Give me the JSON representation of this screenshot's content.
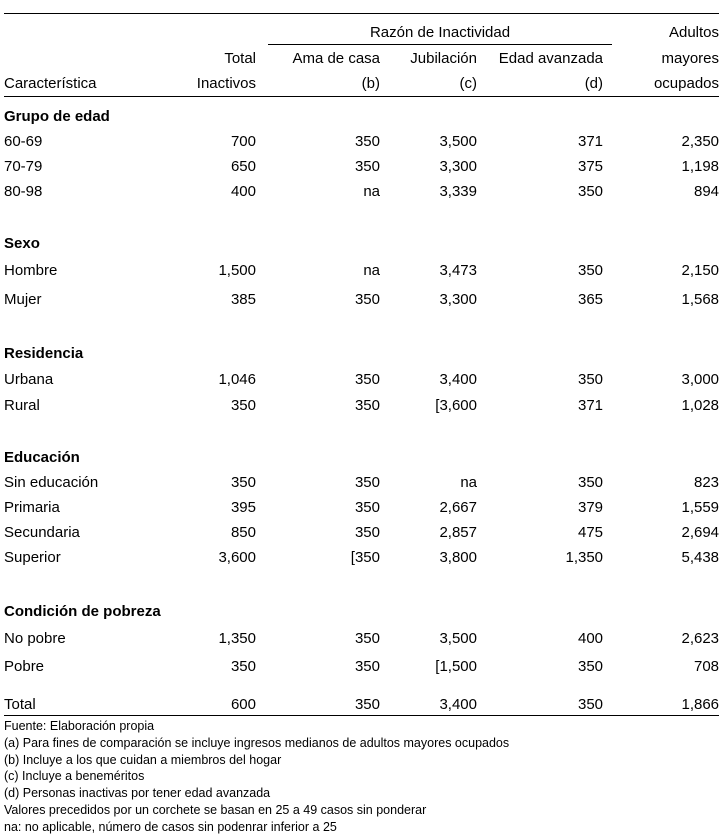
{
  "table": {
    "header": {
      "span": "Razón de Inactividad",
      "adultos": "Adultos",
      "total": "Total",
      "ama_de_casa": "Ama de casa",
      "jubilacion": "Jubilación",
      "edad_avanzada": "Edad avanzada",
      "mayores": "mayores",
      "caracteristica": "Característica",
      "inactivos": "Inactivos",
      "nota_b": "(b)",
      "nota_c": "(c)",
      "nota_d": "(d)",
      "ocupados": "ocupados"
    },
    "sections": [
      {
        "title": "Grupo de edad",
        "rows": [
          {
            "label": "60-69",
            "values": [
              "700",
              "350",
              "3,500",
              "371",
              "2,350"
            ]
          },
          {
            "label": "70-79",
            "values": [
              "650",
              "350",
              "3,300",
              "375",
              "1,198"
            ]
          },
          {
            "label": "80-98",
            "values": [
              "400",
              "na",
              "3,339",
              "350",
              "894"
            ]
          }
        ]
      },
      {
        "title": "Sexo",
        "rows": [
          {
            "label": "Hombre",
            "values": [
              "1,500",
              "na",
              "3,473",
              "350",
              "2,150"
            ]
          },
          {
            "label": "Mujer",
            "values": [
              "385",
              "350",
              "3,300",
              "365",
              "1,568"
            ]
          }
        ]
      },
      {
        "title": "Residencia",
        "rows": [
          {
            "label": "Urbana",
            "values": [
              "1,046",
              "350",
              "3,400",
              "350",
              "3,000"
            ]
          },
          {
            "label": "Rural",
            "values": [
              "350",
              "350",
              "[3,600",
              "371",
              "1,028"
            ]
          }
        ]
      },
      {
        "title": "Educación",
        "rows": [
          {
            "label": "Sin educación",
            "values": [
              "350",
              "350",
              "na",
              "350",
              "823"
            ]
          },
          {
            "label": "Primaria",
            "values": [
              "395",
              "350",
              "2,667",
              "379",
              "1,559"
            ]
          },
          {
            "label": "Secundaria",
            "values": [
              "850",
              "350",
              "2,857",
              "475",
              "2,694"
            ]
          },
          {
            "label": "Superior",
            "values": [
              "3,600",
              "[350",
              "3,800",
              "1,350",
              "5,438"
            ]
          }
        ]
      },
      {
        "title": "Condición de pobreza",
        "rows": [
          {
            "label": "No pobre",
            "values": [
              "1,350",
              "350",
              "3,500",
              "400",
              "2,623"
            ]
          },
          {
            "label": "Pobre",
            "values": [
              "350",
              "350",
              "[1,500",
              "350",
              "708"
            ]
          }
        ]
      }
    ],
    "total_row": {
      "label": "Total",
      "values": [
        "600",
        "350",
        "3,400",
        "350",
        "1,866"
      ]
    },
    "footnotes": [
      "Fuente: Elaboración propia",
      "(a) Para fines de comparación se incluye ingresos medianos de adultos mayores ocupados",
      "(b) Incluye a los que cuidan a miembros del hogar",
      "(c) Incluye a beneméritos",
      "(d) Personas inactivas por tener edad avanzada",
      "Valores precedidos por un corchete se basan en 25 a 49 casos sin ponderar",
      "na: no aplicable, número de casos sin podenrar inferior a 25"
    ]
  }
}
